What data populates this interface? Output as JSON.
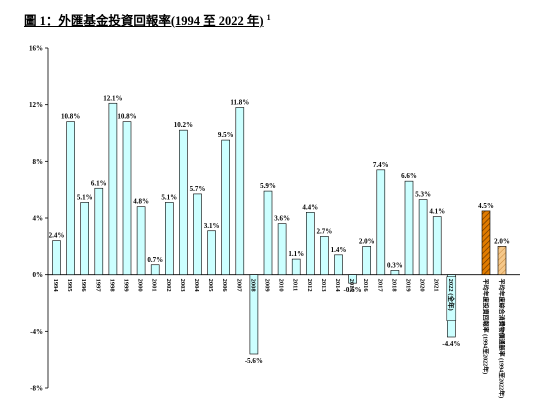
{
  "page": {
    "title": "圖 1：外匯基金投資回報率(1994 至 2022 年)",
    "footnote_marker": "1"
  },
  "chart_data": {
    "type": "bar",
    "title": "圖 1：外匯基金投資回報率(1994 至 2022 年)",
    "xlabel": "",
    "ylabel": "",
    "ylim": [
      -8,
      16
    ],
    "yticks": [
      16,
      12,
      8,
      4,
      0,
      -4,
      -8
    ],
    "ytick_labels": [
      "16%",
      "12%",
      "8%",
      "4%",
      "0%",
      "-4%",
      "-8%"
    ],
    "grid": false,
    "categories": [
      "1994",
      "1995",
      "1996",
      "1997",
      "1998",
      "1999",
      "2000",
      "2001",
      "2002",
      "2003",
      "2004",
      "2005",
      "2006",
      "2007",
      "2008",
      "2009",
      "2010",
      "2011",
      "2012",
      "2013",
      "2014",
      "2015",
      "2016",
      "2017",
      "2018",
      "2019",
      "2020",
      "2021",
      "2022 (全年)"
    ],
    "values": [
      2.4,
      10.8,
      5.1,
      6.1,
      12.1,
      10.8,
      4.8,
      0.7,
      5.1,
      10.2,
      5.7,
      3.1,
      9.5,
      11.8,
      -5.6,
      5.9,
      3.6,
      1.1,
      4.4,
      2.7,
      1.4,
      -0.6,
      2.0,
      7.4,
      0.3,
      6.6,
      5.3,
      4.1,
      -4.4
    ],
    "value_labels": [
      "2.4%",
      "10.8%",
      "5.1%",
      "6.1%",
      "12.1%",
      "10.8%",
      "4.8%",
      "0.7%",
      "5.1%",
      "10.2%",
      "5.7%",
      "3.1%",
      "9.5%",
      "11.8%",
      "-5.6%",
      "5.9%",
      "3.6%",
      "1.1%",
      "4.4%",
      "2.7%",
      "1.4%",
      "-0.6%",
      "2.0%",
      "7.4%",
      "0.3%",
      "6.6%",
      "5.3%",
      "4.1%",
      "-4.4%"
    ],
    "extra_bars": [
      {
        "label": "平均年度投資回報率 (1994至2022年)",
        "value": 4.5,
        "value_label": "4.5%",
        "color": "#E07B00"
      },
      {
        "label": "平均年度綜合消費物價通脹率 (1994至2022年)",
        "value": 2.0,
        "value_label": "2.0%",
        "color": "#F5C88A"
      }
    ],
    "colors": {
      "main_bar": "#CCFFFF",
      "bar_border": "#000000",
      "avg_return": "#E07B00",
      "avg_inflation": "#F5C88A"
    }
  }
}
